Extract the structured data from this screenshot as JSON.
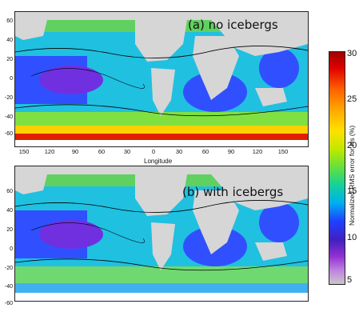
{
  "panels": {
    "a": {
      "label": "(a) no icebergs"
    },
    "b": {
      "label": "(b) with icebergs"
    }
  },
  "axes": {
    "y_ticks": [
      "60",
      "40",
      "20",
      "0",
      "-20",
      "-40",
      "-60"
    ],
    "x_ticks": [
      "150",
      "120",
      "90",
      "60",
      "30",
      "0",
      "30",
      "60",
      "90",
      "120",
      "150"
    ],
    "x_label": "Longitude"
  },
  "colorbar": {
    "title": "Normalized RMS error for Hs (%)",
    "ticks": [
      "30",
      "25",
      "20",
      "15",
      "10",
      "5"
    ],
    "colors": [
      "#c8c8c8",
      "#9030d0",
      "#2040ff",
      "#00b0f0",
      "#60e040",
      "#ffe000",
      "#ff6000",
      "#a00000"
    ]
  },
  "colors": {
    "land": "#d6d6d6",
    "contour": "#000000"
  }
}
